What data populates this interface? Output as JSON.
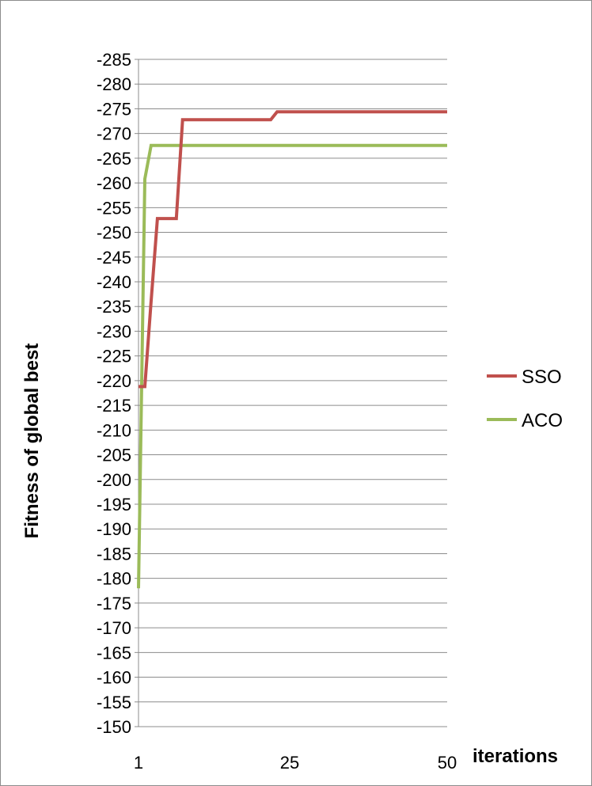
{
  "chart_data": {
    "type": "line",
    "title": "",
    "xlabel": "iterations",
    "ylabel": "Fitness of global best",
    "x_ticks": [
      1,
      25,
      50
    ],
    "xlim": [
      1,
      50
    ],
    "ylim": [
      -150,
      -285
    ],
    "y_axis_inverted": true,
    "y_ticks": [
      -285,
      -280,
      -275,
      -270,
      -265,
      -260,
      -255,
      -250,
      -245,
      -240,
      -235,
      -230,
      -225,
      -220,
      -215,
      -210,
      -205,
      -200,
      -195,
      -190,
      -185,
      -180,
      -175,
      -170,
      -165,
      -160,
      -155,
      -150
    ],
    "grid": true,
    "legend_position": "right",
    "series": [
      {
        "name": "SSO",
        "color": "#c0504d",
        "x": [
          1,
          2,
          3,
          4,
          7,
          8,
          22,
          23,
          50
        ],
        "y": [
          -218.8,
          -218.8,
          -236,
          -252.8,
          -252.8,
          -272.8,
          -272.8,
          -274.4,
          -274.4
        ]
      },
      {
        "name": "ACO",
        "color": "#9bbb59",
        "x": [
          1,
          2,
          3,
          50
        ],
        "y": [
          -178,
          -260.8,
          -267.6,
          -267.6
        ]
      }
    ]
  }
}
